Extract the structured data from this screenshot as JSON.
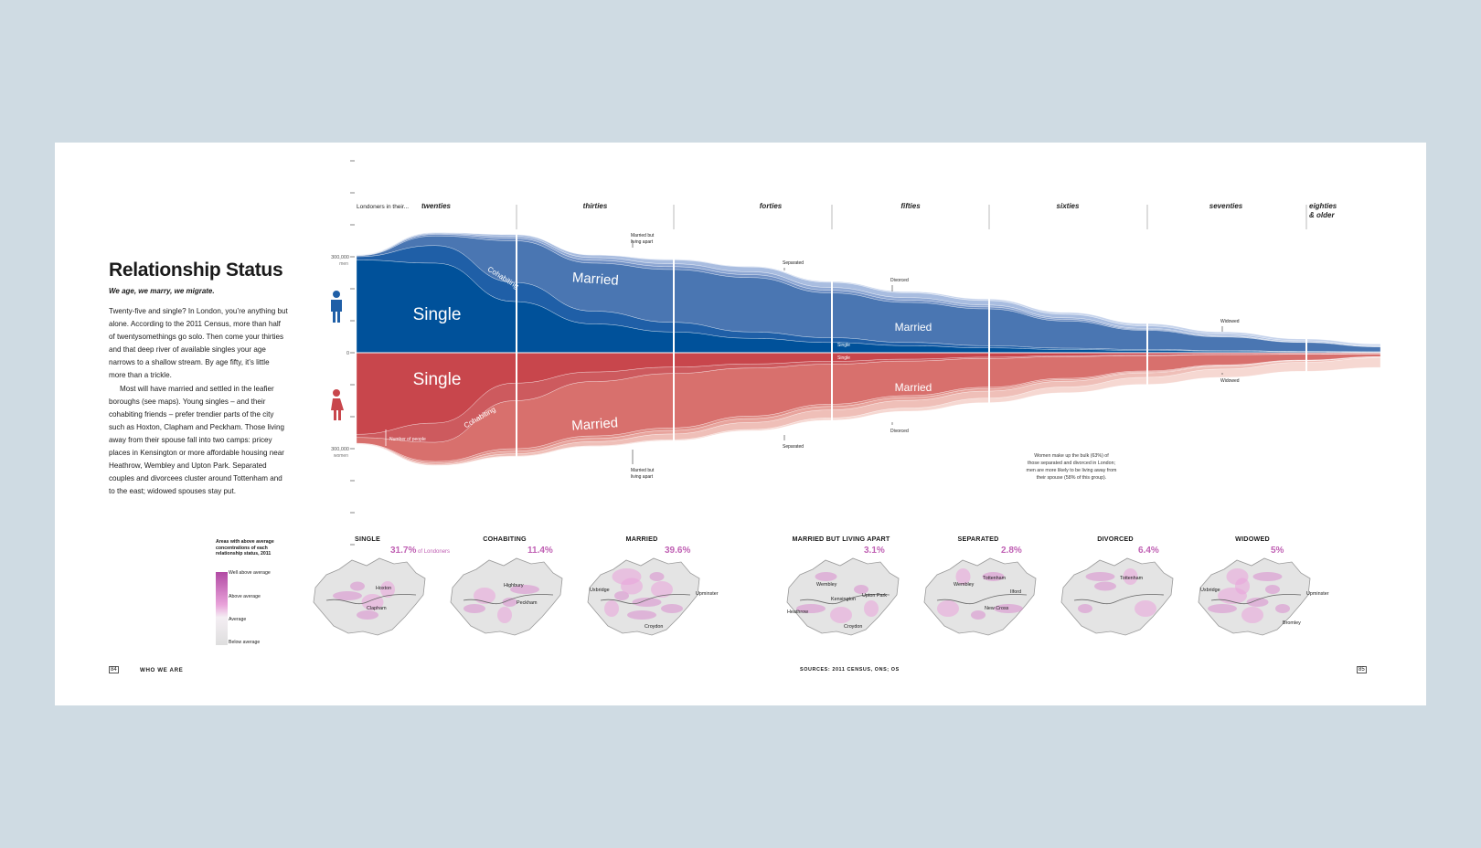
{
  "header": {
    "title": "Relationship Status",
    "subtitle": "We age, we marry, we migrate."
  },
  "body": {
    "p1": "Twenty-five and single? In London, you’re anything but alone. According to the 2011 Census, more than half of twentysomethings go solo. Then come your thirties and that deep river of available singles your age narrows to a shallow stream. By age fifty, it’s little more than a trickle.",
    "p2": "Most will have married and settled in the leafier boroughs (see maps). Young singles – and their cohabiting friends – prefer trendier parts of the city such as Hoxton, Clapham and Peckham. Those living away from their spouse fall into two camps: pricey places in Kensington or more affordable housing near Heathrow, Wembley and Upton Park. Separated couples and divorcees cluster around Tottenham and to the east; widowed spouses stay put."
  },
  "colors": {
    "background": "#cfdbe3",
    "men_single": "#00519a",
    "men_cohabiting": "#1f5fa7",
    "men_married": "#4a76b2",
    "men_apart": "#6f8fc4",
    "men_separated": "#8ea7d3",
    "men_divorced": "#a9bde0",
    "men_widowed": "#c7d4ec",
    "women_single": "#c8464c",
    "women_cohabiting": "#cd5a5e",
    "women_married": "#d8706d",
    "women_apart": "#e08c86",
    "women_separated": "#e8a49d",
    "women_divorced": "#efbfb8",
    "women_widowed": "#f6d8d2",
    "map_high": "#b14aa3",
    "map_low": "#dedede"
  },
  "chart_data": {
    "type": "area",
    "subtype": "mirrored stacked streamgraph",
    "lead_label": "Londoners in their...",
    "age_groups": [
      "twenties",
      "thirties",
      "forties",
      "fifties",
      "sixties",
      "seventies",
      "eighties & older"
    ],
    "x": [
      20,
      25,
      30,
      35,
      40,
      45,
      50,
      55,
      60,
      65,
      70,
      75,
      80,
      85
    ],
    "axis_ticks": [
      {
        "label": "300,000",
        "sub": "men",
        "value": 300000
      },
      {
        "label": "0",
        "sub": "",
        "value": 0
      },
      {
        "label": "300,000",
        "sub": "women",
        "value": -300000
      }
    ],
    "ylim": [
      -430000,
      430000
    ],
    "categories": [
      "Single",
      "Cohabiting",
      "Married",
      "Married but living apart",
      "Separated",
      "Divorced",
      "Widowed"
    ],
    "men": {
      "Single": [
        290000,
        280000,
        160000,
        90000,
        65000,
        45000,
        32000,
        22000,
        15000,
        10000,
        7000,
        5000,
        3000,
        2000
      ],
      "Cohabiting": [
        10000,
        55000,
        60000,
        40000,
        30000,
        20000,
        15000,
        10000,
        7000,
        4000,
        3000,
        2000,
        1000,
        1000
      ],
      "Married": [
        3000,
        30000,
        130000,
        150000,
        165000,
        170000,
        140000,
        125000,
        115000,
        85000,
        60000,
        42000,
        28000,
        15000
      ],
      "Married but living apart": [
        1000,
        5000,
        8000,
        9000,
        9000,
        9000,
        8000,
        7000,
        6000,
        5000,
        3000,
        2000,
        1000,
        1000
      ],
      "Separated": [
        1000,
        3000,
        6000,
        8000,
        9000,
        9000,
        9000,
        8000,
        6000,
        5000,
        3000,
        2000,
        1000,
        1000
      ],
      "Divorced": [
        1000,
        2000,
        5000,
        8000,
        12000,
        15000,
        16000,
        15000,
        14000,
        11000,
        8000,
        5000,
        3000,
        2000
      ],
      "Widowed": [
        500,
        1000,
        1000,
        1000,
        2000,
        2000,
        3000,
        4000,
        5000,
        6000,
        7000,
        7000,
        6000,
        5000
      ]
    },
    "women": {
      "Single": [
        255000,
        220000,
        95000,
        60000,
        45000,
        35000,
        27000,
        20000,
        14000,
        9000,
        7000,
        5000,
        4000,
        3000
      ],
      "Cohabiting": [
        10000,
        60000,
        55000,
        30000,
        20000,
        13000,
        9000,
        6000,
        4000,
        3000,
        2000,
        1000,
        1000,
        1000
      ],
      "Married": [
        18000,
        60000,
        150000,
        170000,
        170000,
        150000,
        125000,
        108000,
        90000,
        68000,
        48000,
        32000,
        18000,
        8000
      ],
      "Married but living apart": [
        1000,
        5000,
        8000,
        8000,
        8000,
        8000,
        7000,
        6000,
        5000,
        4000,
        3000,
        2000,
        1000,
        1000
      ],
      "Separated": [
        1000,
        4000,
        8000,
        10000,
        11000,
        12000,
        11000,
        9000,
        7000,
        5000,
        3000,
        2000,
        1000,
        1000
      ],
      "Divorced": [
        1000,
        3000,
        7000,
        13000,
        18000,
        22000,
        25000,
        24000,
        22000,
        18000,
        14000,
        9000,
        5000,
        2000
      ],
      "Widowed": [
        500,
        1000,
        2000,
        2000,
        3000,
        4000,
        7000,
        10000,
        14000,
        18000,
        22000,
        26000,
        28000,
        30000
      ]
    },
    "stream_labels": [
      {
        "text": "Single",
        "series": "men.Single",
        "size": 19
      },
      {
        "text": "Cohabiting",
        "series": "men.Cohabiting",
        "size": 8,
        "rotate": 32
      },
      {
        "text": "Married",
        "series": "men.Married",
        "size": 15,
        "rotate": 4
      },
      {
        "text": "Married",
        "series": "men.Married",
        "size": 12
      },
      {
        "text": "Single",
        "series": "men.Single",
        "size": 5
      },
      {
        "text": "Single",
        "series": "women.Single",
        "size": 19
      },
      {
        "text": "Cohabiting",
        "series": "women.Cohabiting",
        "size": 8,
        "rotate": -30
      },
      {
        "text": "Married",
        "series": "women.Married",
        "size": 15,
        "rotate": -4
      },
      {
        "text": "Married",
        "series": "women.Married",
        "size": 12
      },
      {
        "text": "Single",
        "series": "women.Single",
        "size": 5
      }
    ],
    "callouts": [
      {
        "text": "Married but living apart"
      },
      {
        "text": "Separated"
      },
      {
        "text": "Divorced"
      },
      {
        "text": "Widowed"
      },
      {
        "text": "Married but living apart"
      },
      {
        "text": "Separated"
      },
      {
        "text": "Divorced"
      },
      {
        "text": "Widowed"
      },
      {
        "text": "Number of people"
      }
    ],
    "note": "Women make up the bulk (63%) of those separated and divorced in London; men are more likely to be living away from their spouse (58% of this group)."
  },
  "legend": {
    "title": "Areas with above average concentrations of each relationship status, 2011",
    "levels": [
      "Well above average",
      "Above average",
      "Average",
      "Below average"
    ]
  },
  "maps": [
    {
      "title": "SINGLE",
      "pct": "31.7%",
      "pct_suffix": "of Londoners",
      "places": [
        "Hoxton",
        "Clapham"
      ]
    },
    {
      "title": "COHABITING",
      "pct": "11.4%",
      "pct_suffix": "",
      "places": [
        "Highbury",
        "Peckham"
      ]
    },
    {
      "title": "MARRIED",
      "pct": "39.6%",
      "pct_suffix": "",
      "places": [
        "Uxbridge",
        "Upminster",
        "Croydon"
      ]
    },
    {
      "title": "MARRIED BUT LIVING APART",
      "pct": "3.1%",
      "pct_suffix": "",
      "places": [
        "Wembley",
        "Upton Park",
        "Kensington",
        "Heathrow",
        "Croydon"
      ]
    },
    {
      "title": "SEPARATED",
      "pct": "2.8%",
      "pct_suffix": "",
      "places": [
        "Tottenham",
        "Wembley",
        "Ilford",
        "New Cross"
      ]
    },
    {
      "title": "DIVORCED",
      "pct": "6.4%",
      "pct_suffix": "",
      "places": [
        "Tottenham"
      ]
    },
    {
      "title": "WIDOWED",
      "pct": "5%",
      "pct_suffix": "",
      "places": [
        "Uxbridge",
        "Upminster",
        "Bromley"
      ]
    }
  ],
  "footer": {
    "page_left": "84",
    "section": "WHO WE ARE",
    "sources": "SOURCES: 2011 CENSUS, ONS; OS",
    "page_right": "85"
  }
}
